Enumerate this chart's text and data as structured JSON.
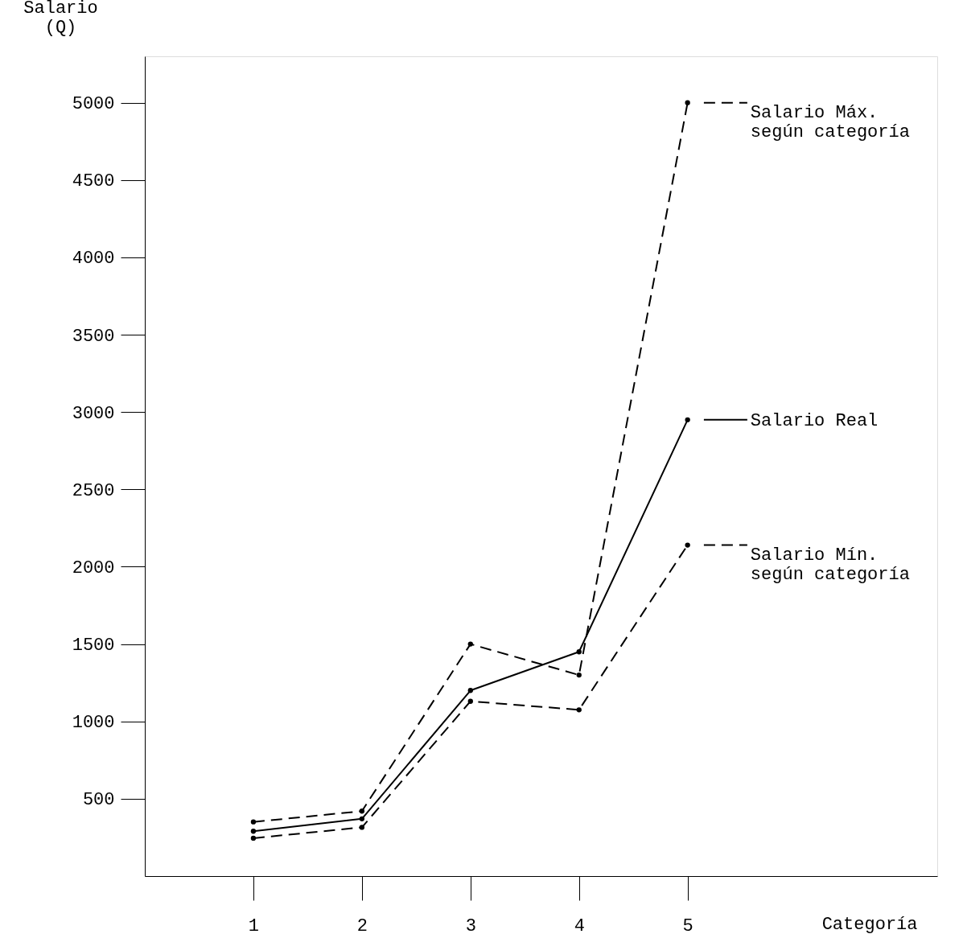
{
  "chart_data": {
    "type": "line",
    "xlabel": "Categoría",
    "ylabel": "Salario (Q)",
    "x": [
      1,
      2,
      3,
      4,
      5
    ],
    "xlim": [
      0,
      7.3
    ],
    "xticks": [
      1,
      2,
      3,
      4,
      5
    ],
    "ylim": [
      0,
      5300
    ],
    "yticks": [
      500,
      1000,
      1500,
      2000,
      2500,
      3000,
      3500,
      4000,
      4500,
      5000
    ],
    "grid": false,
    "legend": "right",
    "marker": "circle",
    "series": [
      {
        "name": "Salario Máx. según categoría",
        "color": "#000000",
        "line_style": "dashed",
        "values": [
          350,
          420,
          1500,
          1300,
          5000
        ]
      },
      {
        "name": "Salario Real",
        "color": "#000000",
        "line_style": "solid",
        "values": [
          290,
          370,
          1200,
          1450,
          2950
        ]
      },
      {
        "name": "Salario Mín. según categoría",
        "color": "#000000",
        "line_style": "dashed",
        "values": [
          245,
          315,
          1130,
          1075,
          2140
        ]
      }
    ]
  }
}
